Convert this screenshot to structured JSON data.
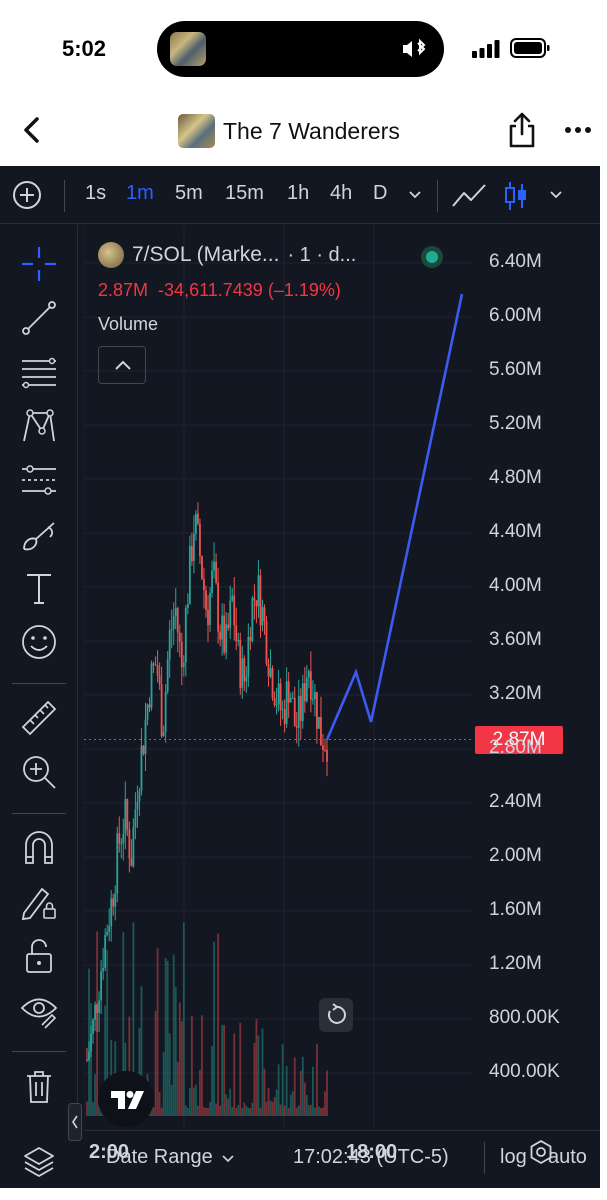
{
  "status_bar": {
    "time": "5:02"
  },
  "nav": {
    "title": "The 7 Wanderers",
    "back_icon": "chevron-left-icon",
    "share_icon": "share-icon",
    "more_icon": "ellipsis-icon"
  },
  "toolbar": {
    "timeframes": [
      "1s",
      "1m",
      "5m",
      "15m",
      "1h",
      "4h",
      "D"
    ],
    "active_timeframe": "1m",
    "add_icon": "plus-circle-icon",
    "chart_type_icons": [
      "line-chart-icon",
      "candlestick-icon"
    ]
  },
  "left_tools": [
    "crosshair-icon",
    "trend-line-icon",
    "fib-lines-icon",
    "pattern-icon",
    "prediction-icon",
    "brush-icon",
    "text-icon",
    "emoji-icon",
    "ruler-icon",
    "zoom-in-icon",
    "magnet-icon",
    "lock-drawing-icon",
    "unlock-icon",
    "eye-icon",
    "trash-icon"
  ],
  "legend": {
    "symbol": "7/SOL (Marke...",
    "interval_suffix": "· 1 · d...",
    "last": "2.87M",
    "change": "-34,611.7439",
    "change_pct": "(–1.19%)",
    "volume_label": "Volume"
  },
  "price_axis": {
    "labels": [
      "6.40M",
      "6.00M",
      "5.60M",
      "5.20M",
      "4.80M",
      "4.40M",
      "4.00M",
      "3.60M",
      "3.20M",
      "2.80M",
      "2.40M",
      "2.00M",
      "1.60M",
      "1.20M",
      "800.00K",
      "400.00K"
    ],
    "last_price_tag": "2.87M"
  },
  "time_axis": {
    "labels": [
      "2:00",
      "18:00"
    ]
  },
  "bottom_bar": {
    "date_range": "Date Range",
    "clock": "17:02:43 (UTC-5)",
    "log": "log",
    "auto": "auto"
  },
  "colors": {
    "background": "#131722",
    "up": "#26a69a",
    "down": "#ef5350",
    "accent": "#2962ff",
    "drawing": "#3d5af1",
    "price_tag": "#f23645"
  },
  "chart_data": {
    "type": "candlestick",
    "unit": "M",
    "ylim": [
      0.4,
      6.6
    ],
    "x_labels": [
      "2:00",
      "18:00"
    ],
    "last_price": 2.87,
    "close_path": [
      0.5,
      0.75,
      1.1,
      1.45,
      1.7,
      2.1,
      2.3,
      2.0,
      2.55,
      2.9,
      3.3,
      3.45,
      2.95,
      3.6,
      3.85,
      3.4,
      4.0,
      4.5,
      4.2,
      3.8,
      4.1,
      3.7,
      3.55,
      3.9,
      3.45,
      3.3,
      3.85,
      4.0,
      3.75,
      3.4,
      3.2,
      3.05,
      3.3,
      2.95,
      3.1,
      3.45,
      3.2,
      2.9,
      2.87
    ],
    "drawing_line": [
      2.87,
      3.37,
      3.0,
      6.17
    ]
  }
}
